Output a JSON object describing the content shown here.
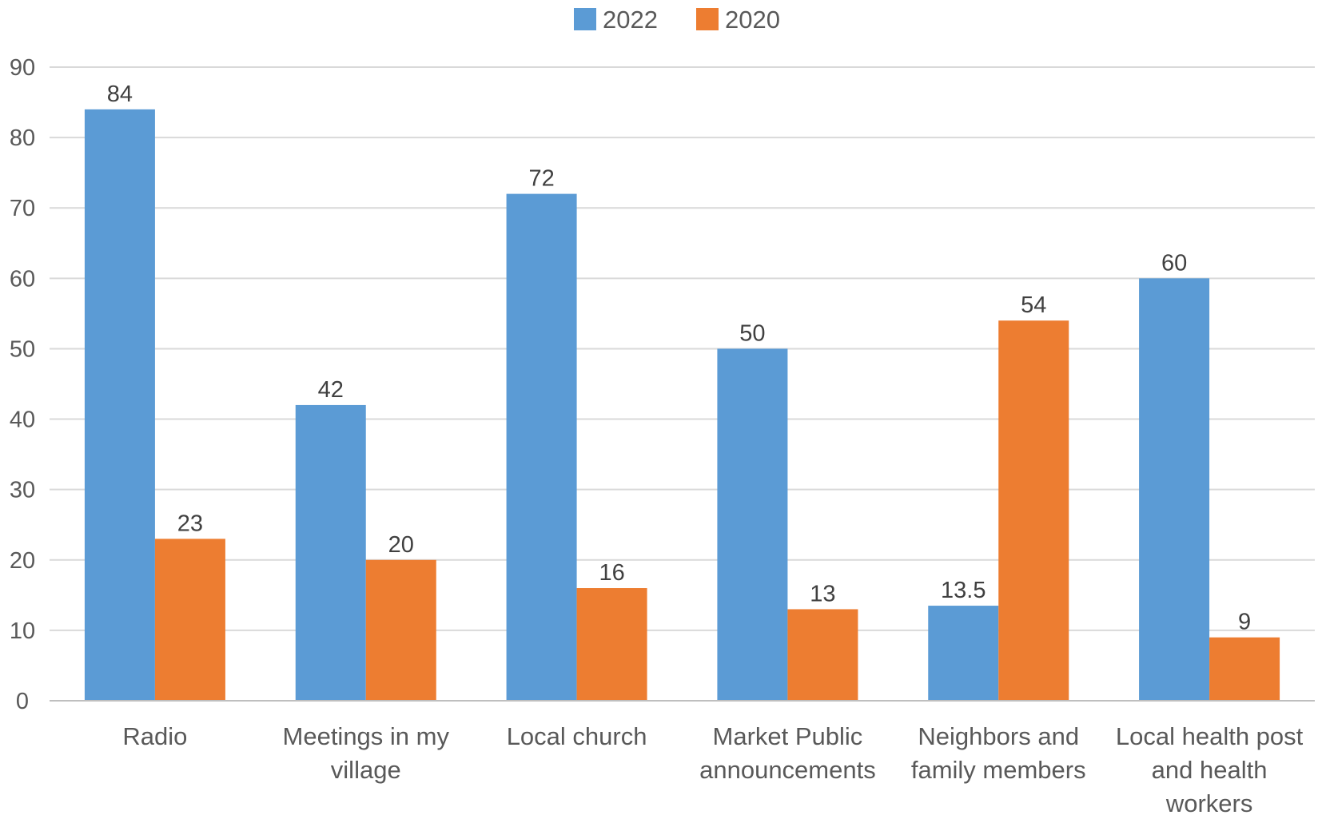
{
  "chart_data": {
    "type": "bar",
    "categories": [
      [
        "Radio"
      ],
      [
        "Meetings in my",
        "village"
      ],
      [
        "Local church"
      ],
      [
        "Market Public",
        "announcements"
      ],
      [
        "Neighbors and",
        "family members"
      ],
      [
        "Local health post",
        "and health",
        "workers"
      ]
    ],
    "series": [
      {
        "name": "2022",
        "color": "#5b9bd5",
        "values": [
          84,
          42,
          72,
          50,
          13.5,
          60
        ],
        "labels": [
          "84",
          "42",
          "72",
          "50",
          "13.5",
          "60"
        ]
      },
      {
        "name": "2020",
        "color": "#ed7d31",
        "values": [
          23,
          20,
          16,
          13,
          54,
          9
        ],
        "labels": [
          "23",
          "20",
          "16",
          "13",
          "54",
          "9"
        ]
      }
    ],
    "ylim": [
      0,
      90
    ],
    "yticks": [
      0,
      10,
      20,
      30,
      40,
      50,
      60,
      70,
      80,
      90
    ],
    "grid": true,
    "legend": "top-center",
    "title": "",
    "xlabel": "",
    "ylabel": ""
  }
}
